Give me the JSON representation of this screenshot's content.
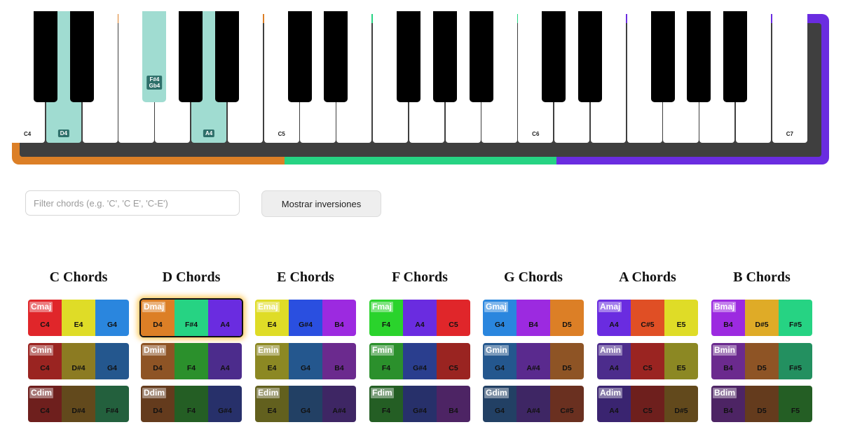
{
  "piano": {
    "frame_colors": [
      "#dc7f26",
      "#26d383",
      "#6a2ce0"
    ],
    "body_color": "#3f3f3f",
    "white_keys": [
      {
        "note": "C4",
        "label": "C4",
        "highlighted": false
      },
      {
        "note": "D4",
        "label": "D4",
        "highlighted": true
      },
      {
        "note": "E4",
        "label": "",
        "highlighted": false
      },
      {
        "note": "F4",
        "label": "",
        "highlighted": false
      },
      {
        "note": "G4",
        "label": "",
        "highlighted": false
      },
      {
        "note": "A4",
        "label": "A4",
        "highlighted": true
      },
      {
        "note": "B4",
        "label": "",
        "highlighted": false
      },
      {
        "note": "C5",
        "label": "C5",
        "highlighted": false
      },
      {
        "note": "D5",
        "label": "",
        "highlighted": false
      },
      {
        "note": "E5",
        "label": "",
        "highlighted": false
      },
      {
        "note": "F5",
        "label": "",
        "highlighted": false
      },
      {
        "note": "G5",
        "label": "",
        "highlighted": false
      },
      {
        "note": "A5",
        "label": "",
        "highlighted": false
      },
      {
        "note": "B5",
        "label": "",
        "highlighted": false
      },
      {
        "note": "C6",
        "label": "C6",
        "highlighted": false
      },
      {
        "note": "D6",
        "label": "",
        "highlighted": false
      },
      {
        "note": "E6",
        "label": "",
        "highlighted": false
      },
      {
        "note": "F6",
        "label": "",
        "highlighted": false
      },
      {
        "note": "G6",
        "label": "",
        "highlighted": false
      },
      {
        "note": "A6",
        "label": "",
        "highlighted": false
      },
      {
        "note": "B6",
        "label": "",
        "highlighted": false
      },
      {
        "note": "C7",
        "label": "C7",
        "highlighted": false
      }
    ],
    "black_keys": [
      {
        "note": "C#4",
        "after_white": 0,
        "label": "",
        "highlighted": false
      },
      {
        "note": "D#4",
        "after_white": 1,
        "label": "",
        "highlighted": false
      },
      {
        "note": "F#4",
        "after_white": 3,
        "label": "F#4\nGb4",
        "highlighted": true
      },
      {
        "note": "G#4",
        "after_white": 4,
        "label": "",
        "highlighted": false
      },
      {
        "note": "A#4",
        "after_white": 5,
        "label": "",
        "highlighted": false
      },
      {
        "note": "C#5",
        "after_white": 7,
        "label": "",
        "highlighted": false
      },
      {
        "note": "D#5",
        "after_white": 8,
        "label": "",
        "highlighted": false
      },
      {
        "note": "F#5",
        "after_white": 10,
        "label": "",
        "highlighted": false
      },
      {
        "note": "G#5",
        "after_white": 11,
        "label": "",
        "highlighted": false
      },
      {
        "note": "A#5",
        "after_white": 12,
        "label": "",
        "highlighted": false
      },
      {
        "note": "C#6",
        "after_white": 14,
        "label": "",
        "highlighted": false
      },
      {
        "note": "D#6",
        "after_white": 15,
        "label": "",
        "highlighted": false
      },
      {
        "note": "F#6",
        "after_white": 17,
        "label": "",
        "highlighted": false
      },
      {
        "note": "G#6",
        "after_white": 18,
        "label": "",
        "highlighted": false
      },
      {
        "note": "A#6",
        "after_white": 19,
        "label": "",
        "highlighted": false
      }
    ],
    "highlight_color": "#a0dcd1"
  },
  "filter": {
    "placeholder": "Filter chords (e.g. 'C', 'C E', 'C-E')",
    "value": ""
  },
  "inversions_button": {
    "label": "Mostrar inversiones"
  },
  "chord_groups": [
    {
      "title": "C Chords",
      "chords": [
        {
          "name": "Cmaj",
          "notes": [
            "C4",
            "E4",
            "G4"
          ],
          "colors": [
            "#e0262a",
            "#dfdc27",
            "#2a86de"
          ]
        },
        {
          "name": "Cmin",
          "notes": [
            "C4",
            "D#4",
            "G4"
          ],
          "colors": [
            "#9a2421",
            "#8c7b22",
            "#24578e"
          ]
        },
        {
          "name": "Cdim",
          "notes": [
            "C4",
            "D#4",
            "F#4"
          ],
          "colors": [
            "#6e1f1d",
            "#62491c",
            "#23603d"
          ]
        }
      ]
    },
    {
      "title": "D Chords",
      "chords": [
        {
          "name": "Dmaj",
          "notes": [
            "D4",
            "F#4",
            "A4"
          ],
          "colors": [
            "#dc7f26",
            "#26d383",
            "#6a2ce0"
          ],
          "selected": true
        },
        {
          "name": "Dmin",
          "notes": [
            "D4",
            "F4",
            "A4"
          ],
          "colors": [
            "#8e5425",
            "#2b902c",
            "#4c2c8c"
          ]
        },
        {
          "name": "Ddim",
          "notes": [
            "D4",
            "F4",
            "G#4"
          ],
          "colors": [
            "#643b1d",
            "#245e24",
            "#27306a"
          ]
        }
      ]
    },
    {
      "title": "E Chords",
      "chords": [
        {
          "name": "Emaj",
          "notes": [
            "E4",
            "G#4",
            "B4"
          ],
          "colors": [
            "#dfdc27",
            "#2a4fe0",
            "#9c2ae0"
          ]
        },
        {
          "name": "Emin",
          "notes": [
            "E4",
            "G4",
            "B4"
          ],
          "colors": [
            "#8c8823",
            "#24578e",
            "#6b2a8e"
          ]
        },
        {
          "name": "Edim",
          "notes": [
            "E4",
            "G4",
            "A#4"
          ],
          "colors": [
            "#62601e",
            "#224064",
            "#3e2664"
          ]
        }
      ]
    },
    {
      "title": "F Chords",
      "chords": [
        {
          "name": "Fmaj",
          "notes": [
            "F4",
            "A4",
            "C5"
          ],
          "colors": [
            "#2ad32c",
            "#6a2ce0",
            "#e0262a"
          ]
        },
        {
          "name": "Fmin",
          "notes": [
            "F4",
            "G#4",
            "C5"
          ],
          "colors": [
            "#2b902c",
            "#2a3e8e",
            "#9a2421"
          ]
        },
        {
          "name": "Fdim",
          "notes": [
            "F4",
            "G#4",
            "B4"
          ],
          "colors": [
            "#245e24",
            "#27306a",
            "#4d2464"
          ]
        }
      ]
    },
    {
      "title": "G Chords",
      "chords": [
        {
          "name": "Gmaj",
          "notes": [
            "G4",
            "B4",
            "D5"
          ],
          "colors": [
            "#2a86de",
            "#9c2ae0",
            "#dc7f26"
          ]
        },
        {
          "name": "Gmin",
          "notes": [
            "G4",
            "A#4",
            "D5"
          ],
          "colors": [
            "#24578e",
            "#5a2a8e",
            "#8e5425"
          ]
        },
        {
          "name": "Gdim",
          "notes": [
            "G4",
            "A#4",
            "C#5"
          ],
          "colors": [
            "#224064",
            "#3e2664",
            "#6a3020"
          ]
        }
      ]
    },
    {
      "title": "A Chords",
      "chords": [
        {
          "name": "Amaj",
          "notes": [
            "A4",
            "C#5",
            "E5"
          ],
          "colors": [
            "#6a2ce0",
            "#e04f25",
            "#dfdc27"
          ]
        },
        {
          "name": "Amin",
          "notes": [
            "A4",
            "C5",
            "E5"
          ],
          "colors": [
            "#4c2c8c",
            "#9a2421",
            "#8c8823"
          ]
        },
        {
          "name": "Adim",
          "notes": [
            "A4",
            "C5",
            "D#5"
          ],
          "colors": [
            "#3a2470",
            "#6e1f1d",
            "#62491c"
          ]
        }
      ]
    },
    {
      "title": "B Chords",
      "chords": [
        {
          "name": "Bmaj",
          "notes": [
            "B4",
            "D#5",
            "F#5"
          ],
          "colors": [
            "#9c2ae0",
            "#dfab27",
            "#26d383"
          ]
        },
        {
          "name": "Bmin",
          "notes": [
            "B4",
            "D5",
            "F#5"
          ],
          "colors": [
            "#6b2a8e",
            "#8e5425",
            "#239060"
          ]
        },
        {
          "name": "Bdim",
          "notes": [
            "B4",
            "D5",
            "F5"
          ],
          "colors": [
            "#4d2464",
            "#643b1d",
            "#245e24"
          ]
        }
      ]
    }
  ]
}
